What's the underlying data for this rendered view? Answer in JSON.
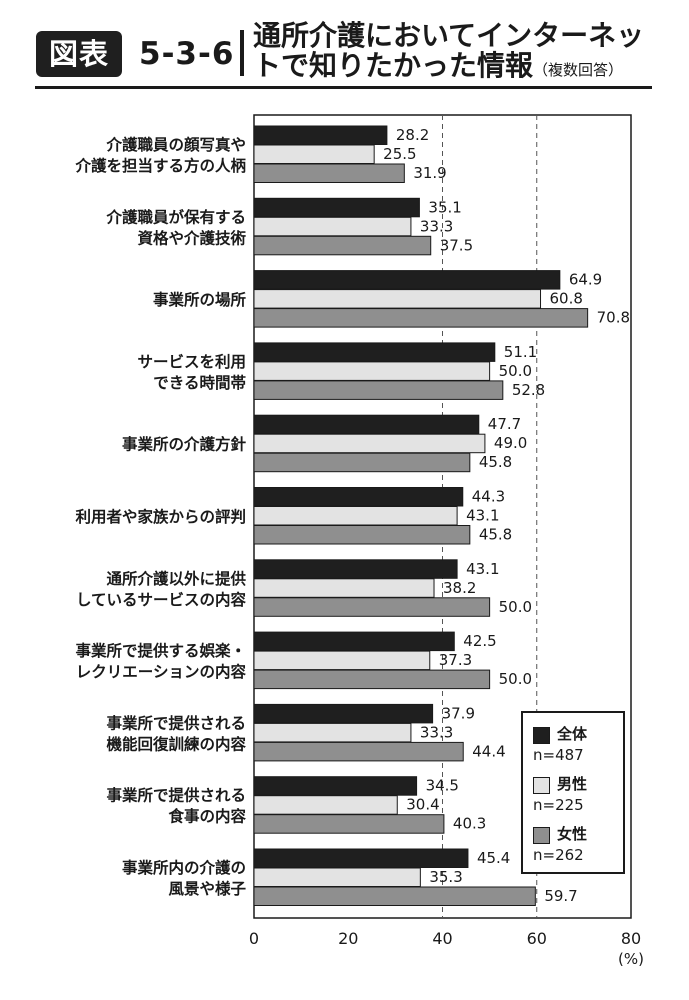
{
  "figure": {
    "badge": "図表",
    "number": "5-3-6",
    "title_line1": "通所介護においてインターネッ",
    "title_line2": "トで知りたかった情報",
    "title_note": "（複数回答）"
  },
  "chart_data": {
    "type": "bar",
    "orientation": "horizontal",
    "categories": [
      [
        "介護職員の顔写真や",
        "介護を担当する方の人柄"
      ],
      [
        "介護職員が保有する",
        "資格や介護技術"
      ],
      [
        "事業所の場所"
      ],
      [
        "サービスを利用",
        "できる時間帯"
      ],
      [
        "事業所の介護方針"
      ],
      [
        "利用者や家族からの評判"
      ],
      [
        "通所介護以外に提供",
        "しているサービスの内容"
      ],
      [
        "事業所で提供する娯楽・",
        "レクリエーションの内容"
      ],
      [
        "事業所で提供される",
        "機能回復訓練の内容"
      ],
      [
        "事業所で提供される",
        "食事の内容"
      ],
      [
        "事業所内の介護の",
        "風景や様子"
      ]
    ],
    "series": [
      {
        "name": "全体",
        "n": "n=487",
        "color": "#1f1f1f",
        "values": [
          28.2,
          35.1,
          64.9,
          51.1,
          47.7,
          44.3,
          43.1,
          42.5,
          37.9,
          34.5,
          45.4
        ]
      },
      {
        "name": "男性",
        "n": "n=225",
        "color": "#e3e3e3",
        "values": [
          25.5,
          33.3,
          60.8,
          50.0,
          49.0,
          43.1,
          38.2,
          37.3,
          33.3,
          30.4,
          35.3
        ]
      },
      {
        "name": "女性",
        "n": "n=262",
        "color": "#8f8f8f",
        "values": [
          31.9,
          37.5,
          70.8,
          52.8,
          45.8,
          45.8,
          50.0,
          50.0,
          44.4,
          40.3,
          59.7
        ]
      }
    ],
    "xlim": [
      0,
      80
    ],
    "xticks": [
      0,
      20,
      40,
      60,
      80
    ],
    "xunit": "(%)",
    "grid": "dashed verticals at 40 and 60",
    "legend_position": "bottom-right"
  }
}
